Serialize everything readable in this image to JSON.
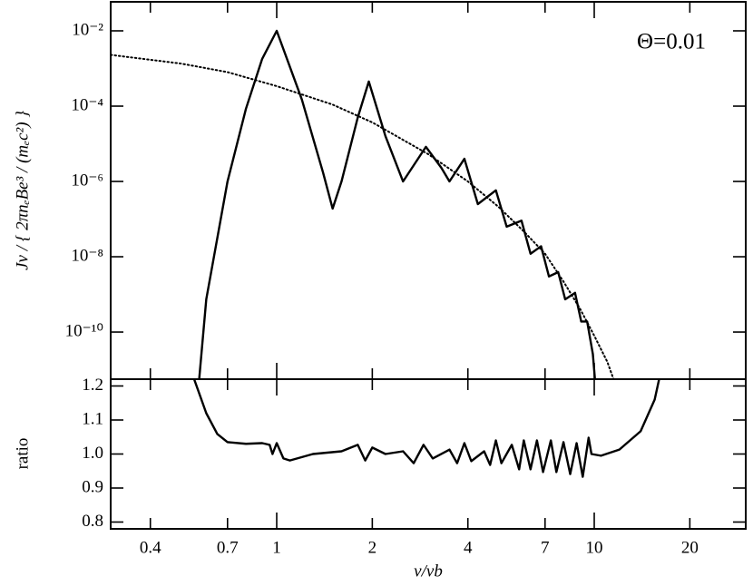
{
  "chart_data": [
    {
      "type": "line",
      "xscale": "log",
      "yscale": "log",
      "ylabel": "Jν / { 2πnₑBe³ / (mₑc²) }",
      "annotation": "Θ=0.01",
      "xlim": [
        0.3,
        30
      ],
      "ylim": [
        5.6e-12,
        0.059
      ],
      "yticks": [
        {
          "value": 0.01,
          "label": "10⁻²"
        },
        {
          "value": 0.0001,
          "label": "10⁻⁴"
        },
        {
          "value": 1e-06,
          "label": "10⁻⁶"
        },
        {
          "value": 1e-08,
          "label": "10⁻⁸"
        },
        {
          "value": 1e-10,
          "label": "10⁻¹⁰"
        }
      ],
      "series": [
        {
          "color": "#000000",
          "dash": "solid",
          "x": [
            0.57,
            0.6,
            0.7,
            0.8,
            0.9,
            1.0,
            1.2,
            1.4,
            1.5,
            1.6,
            1.8,
            1.95,
            2.2,
            2.5,
            2.95,
            3.3,
            3.5,
            3.9,
            4.3,
            4.9,
            5.3,
            5.9,
            6.3,
            6.8,
            7.2,
            7.7,
            8.1,
            8.7,
            9.1,
            9.5,
            9.9,
            10.05
          ],
          "values": [
            5.6e-12,
            7.4e-10,
            1e-06,
            8.5e-05,
            0.0018,
            0.01,
            0.00015,
            1.7e-06,
            1.9e-07,
            1e-06,
            5e-05,
            0.00045,
            1.6e-05,
            1e-06,
            8.3e-06,
            2.3e-06,
            1e-06,
            4e-06,
            2.5e-07,
            5.8e-07,
            6.3e-08,
            9.1e-08,
            1.2e-08,
            1.9e-08,
            3e-09,
            3.9e-09,
            7.4e-10,
            1.1e-09,
            1.9e-10,
            1.9e-10,
            2.6e-11,
            5.6e-12
          ]
        },
        {
          "color": "#000000",
          "dash": "dotted",
          "x": [
            0.3,
            0.5,
            0.7,
            1,
            1.5,
            2,
            3,
            4,
            5,
            6,
            7,
            8,
            9,
            10,
            11,
            11.5
          ],
          "values": [
            0.0023,
            0.00135,
            0.0008,
            0.00034,
            0.00011,
            3.7e-05,
            5.3e-06,
            1e-06,
            2.1e-07,
            4.7e-08,
            1.2e-08,
            2.2e-09,
            4.3e-10,
            8e-11,
            1.6e-11,
            5.6e-12
          ]
        }
      ]
    },
    {
      "type": "line",
      "xscale": "log",
      "xlabel": "ν/νb",
      "ylabel": "ratio",
      "xlim": [
        0.3,
        30
      ],
      "ylim": [
        0.78,
        1.22
      ],
      "xticks": [
        0.4,
        0.7,
        1,
        2,
        4,
        7,
        10,
        20
      ],
      "yticks": [
        0.8,
        0.9,
        {
          "value": 1.0,
          "label": "1.0"
        },
        1.1,
        1.2
      ],
      "series": [
        {
          "color": "#000000",
          "dash": "solid",
          "x": [
            0.55,
            0.6,
            0.65,
            0.7,
            0.8,
            0.9,
            0.95,
            0.97,
            1.0,
            1.05,
            1.1,
            1.3,
            1.6,
            1.8,
            1.9,
            2.0,
            2.2,
            2.5,
            2.7,
            2.9,
            3.1,
            3.5,
            3.7,
            3.9,
            4.1,
            4.5,
            4.7,
            4.9,
            5.1,
            5.5,
            5.8,
            6.0,
            6.3,
            6.6,
            6.9,
            7.3,
            7.6,
            8.0,
            8.4,
            8.8,
            9.2,
            9.6,
            9.8,
            10.5,
            12,
            14,
            15.5,
            16
          ],
          "values": [
            1.219,
            1.12,
            1.059,
            1.035,
            1.03,
            1.032,
            1.027,
            1.0,
            1.032,
            0.987,
            0.981,
            1.0,
            1.008,
            1.027,
            0.981,
            1.019,
            1.0,
            1.008,
            0.973,
            1.027,
            0.987,
            1.013,
            0.973,
            1.032,
            0.979,
            1.008,
            0.968,
            1.04,
            0.973,
            1.027,
            0.955,
            1.04,
            0.955,
            1.04,
            0.947,
            1.04,
            0.947,
            1.035,
            0.941,
            1.032,
            0.933,
            1.048,
            1.0,
            0.995,
            1.013,
            1.067,
            1.16,
            1.219
          ]
        }
      ]
    }
  ]
}
